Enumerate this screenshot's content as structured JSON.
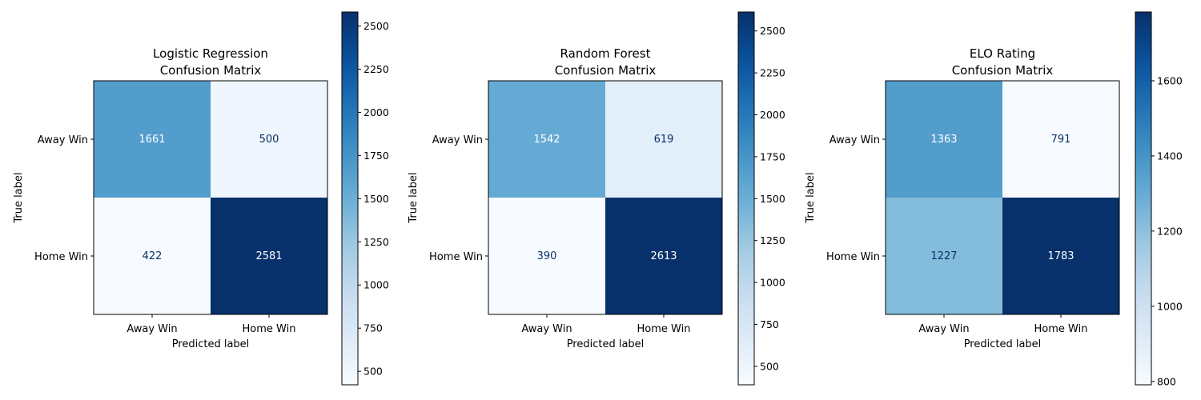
{
  "chart_data": [
    {
      "type": "heatmap",
      "title_line1": "Logistic Regression",
      "title_line2": "Confusion Matrix",
      "xlabel": "Predicted label",
      "ylabel": "True label",
      "x_categories": [
        "Away Win",
        "Home Win"
      ],
      "y_categories": [
        "Away Win",
        "Home Win"
      ],
      "values": [
        [
          1661,
          500
        ],
        [
          422,
          2581
        ]
      ],
      "colormap": "Blues",
      "colorbar": {
        "min": 422,
        "max": 2581,
        "ticks": [
          500,
          750,
          1000,
          1250,
          1500,
          1750,
          2000,
          2250,
          2500
        ]
      }
    },
    {
      "type": "heatmap",
      "title_line1": "Random Forest",
      "title_line2": "Confusion Matrix",
      "xlabel": "Predicted label",
      "ylabel": "True label",
      "x_categories": [
        "Away Win",
        "Home Win"
      ],
      "y_categories": [
        "Away Win",
        "Home Win"
      ],
      "values": [
        [
          1542,
          619
        ],
        [
          390,
          2613
        ]
      ],
      "colormap": "Blues",
      "colorbar": {
        "min": 390,
        "max": 2613,
        "ticks": [
          500,
          750,
          1000,
          1250,
          1500,
          1750,
          2000,
          2250,
          2500
        ]
      }
    },
    {
      "type": "heatmap",
      "title_line1": "ELO Rating",
      "title_line2": "Confusion Matrix",
      "xlabel": "Predicted label",
      "ylabel": "True label",
      "x_categories": [
        "Away Win",
        "Home Win"
      ],
      "y_categories": [
        "Away Win",
        "Home Win"
      ],
      "values": [
        [
          1363,
          791
        ],
        [
          1227,
          1783
        ]
      ],
      "colormap": "Blues",
      "colorbar": {
        "min": 791,
        "max": 1783,
        "ticks": [
          800,
          1000,
          1200,
          1400,
          1600
        ]
      }
    }
  ]
}
